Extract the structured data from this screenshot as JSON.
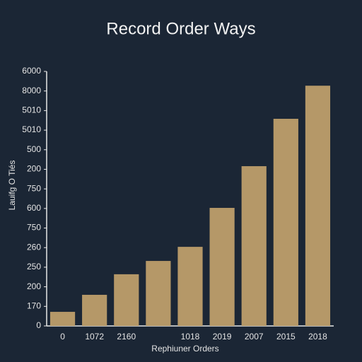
{
  "chart_data": {
    "type": "bar",
    "title": "Record Order Ways",
    "x_label": "Rephiuner Orders",
    "y_label": "Lauifg O Tiés",
    "categories": [
      "0",
      "1072",
      "2160",
      null,
      "1018",
      "2019",
      "2007",
      "2015",
      "2018"
    ],
    "values": [
      0.72,
      1.59,
      2.64,
      3.32,
      4.04,
      6.03,
      8.16,
      10.58,
      12.27
    ],
    "color": "#b59868",
    "ylim": [
      0,
      13
    ],
    "yticks": [
      {
        "value": 0,
        "label": "0"
      },
      {
        "value": 1,
        "label": "170"
      },
      {
        "value": 2,
        "label": "200"
      },
      {
        "value": 3,
        "label": "250"
      },
      {
        "value": 4,
        "label": "260"
      },
      {
        "value": 5,
        "label": "750"
      },
      {
        "value": 6,
        "label": "600"
      },
      {
        "value": 7,
        "label": "750"
      },
      {
        "value": 8,
        "label": "200"
      },
      {
        "value": 9,
        "label": "500"
      },
      {
        "value": 10,
        "label": "5010"
      },
      {
        "value": 11,
        "label": "5010"
      },
      {
        "value": 12,
        "label": "8000"
      },
      {
        "value": 13,
        "label": "6000"
      }
    ],
    "grid": false
  }
}
